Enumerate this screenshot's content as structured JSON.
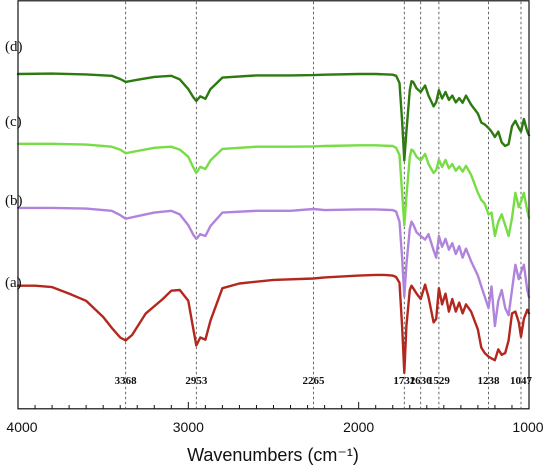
{
  "chart_data": {
    "type": "line",
    "xlabel": "Wavenumbers (cm⁻¹)",
    "ylabel": "",
    "xlim": [
      4000,
      1000
    ],
    "x_reversed": true,
    "x_ticks": [
      4000,
      3000,
      2000,
      1000
    ],
    "y_ticks": "none",
    "grid": false,
    "legend": "none",
    "reference_lines": [
      {
        "x": 3368,
        "label": "3368"
      },
      {
        "x": 2953,
        "label": "2953"
      },
      {
        "x": 2265,
        "label": "2265"
      },
      {
        "x": 1732,
        "label": "1732"
      },
      {
        "x": 1636,
        "label": "1636"
      },
      {
        "x": 1529,
        "label": "1529"
      },
      {
        "x": 1238,
        "label": "1238"
      },
      {
        "x": 1047,
        "label": "1047"
      }
    ],
    "series": [
      {
        "name": "(d)",
        "color": "#2d7a10",
        "x": [
          4000,
          3800,
          3600,
          3450,
          3400,
          3368,
          3300,
          3200,
          3100,
          3050,
          3000,
          2970,
          2953,
          2930,
          2900,
          2870,
          2800,
          2600,
          2400,
          2265,
          2200,
          2000,
          1900,
          1800,
          1780,
          1760,
          1745,
          1732,
          1720,
          1700,
          1690,
          1680,
          1660,
          1636,
          1610,
          1590,
          1560,
          1545,
          1529,
          1510,
          1490,
          1470,
          1450,
          1430,
          1410,
          1390,
          1370,
          1340,
          1300,
          1280,
          1260,
          1238,
          1220,
          1200,
          1180,
          1160,
          1140,
          1120,
          1100,
          1080,
          1060,
          1047,
          1030,
          1010,
          1000
        ],
        "y": [
          0.85,
          0.851,
          0.849,
          0.845,
          0.836,
          0.828,
          0.834,
          0.842,
          0.845,
          0.835,
          0.808,
          0.785,
          0.775,
          0.788,
          0.781,
          0.808,
          0.84,
          0.846,
          0.846,
          0.847,
          0.848,
          0.85,
          0.85,
          0.848,
          0.845,
          0.825,
          0.72,
          0.61,
          0.69,
          0.805,
          0.83,
          0.828,
          0.81,
          0.8,
          0.818,
          0.79,
          0.76,
          0.772,
          0.805,
          0.782,
          0.8,
          0.778,
          0.79,
          0.771,
          0.783,
          0.77,
          0.79,
          0.765,
          0.74,
          0.715,
          0.71,
          0.7,
          0.69,
          0.675,
          0.69,
          0.66,
          0.65,
          0.655,
          0.705,
          0.72,
          0.7,
          0.69,
          0.725,
          0.69,
          0.68
        ]
      },
      {
        "name": "(c)",
        "color": "#77dd44",
        "x": [
          4000,
          3800,
          3600,
          3450,
          3400,
          3368,
          3300,
          3200,
          3100,
          3050,
          3000,
          2970,
          2953,
          2930,
          2900,
          2870,
          2800,
          2600,
          2400,
          2265,
          2200,
          2000,
          1900,
          1800,
          1780,
          1760,
          1745,
          1732,
          1720,
          1700,
          1690,
          1680,
          1660,
          1636,
          1610,
          1590,
          1560,
          1545,
          1529,
          1510,
          1490,
          1470,
          1450,
          1430,
          1410,
          1390,
          1370,
          1340,
          1300,
          1280,
          1260,
          1238,
          1220,
          1200,
          1180,
          1160,
          1140,
          1120,
          1100,
          1080,
          1060,
          1047,
          1030,
          1010,
          1000
        ],
        "y": [
          0.656,
          0.656,
          0.654,
          0.648,
          0.64,
          0.63,
          0.636,
          0.645,
          0.648,
          0.64,
          0.62,
          0.59,
          0.575,
          0.592,
          0.586,
          0.61,
          0.642,
          0.648,
          0.648,
          0.649,
          0.65,
          0.652,
          0.652,
          0.65,
          0.645,
          0.625,
          0.52,
          0.43,
          0.51,
          0.62,
          0.64,
          0.637,
          0.62,
          0.61,
          0.628,
          0.6,
          0.575,
          0.583,
          0.612,
          0.592,
          0.611,
          0.588,
          0.6,
          0.581,
          0.593,
          0.579,
          0.595,
          0.57,
          0.52,
          0.5,
          0.49,
          0.46,
          0.465,
          0.4,
          0.44,
          0.46,
          0.43,
          0.4,
          0.45,
          0.52,
          0.48,
          0.495,
          0.52,
          0.47,
          0.45
        ]
      },
      {
        "name": "(b)",
        "color": "#b084dc",
        "x": [
          4000,
          3800,
          3600,
          3450,
          3400,
          3368,
          3300,
          3200,
          3100,
          3050,
          3000,
          2970,
          2953,
          2930,
          2900,
          2870,
          2800,
          2600,
          2400,
          2265,
          2200,
          2000,
          1900,
          1800,
          1780,
          1760,
          1745,
          1732,
          1720,
          1700,
          1690,
          1680,
          1660,
          1636,
          1610,
          1590,
          1560,
          1545,
          1529,
          1510,
          1490,
          1470,
          1450,
          1430,
          1410,
          1390,
          1370,
          1340,
          1300,
          1280,
          1260,
          1238,
          1220,
          1200,
          1180,
          1160,
          1140,
          1120,
          1100,
          1080,
          1060,
          1047,
          1030,
          1010,
          1000
        ],
        "y": [
          0.478,
          0.478,
          0.476,
          0.47,
          0.458,
          0.448,
          0.455,
          0.465,
          0.47,
          0.46,
          0.43,
          0.403,
          0.392,
          0.405,
          0.4,
          0.428,
          0.465,
          0.47,
          0.47,
          0.475,
          0.472,
          0.474,
          0.474,
          0.472,
          0.468,
          0.44,
          0.34,
          0.232,
          0.32,
          0.42,
          0.44,
          0.432,
          0.41,
          0.4,
          0.39,
          0.405,
          0.36,
          0.34,
          0.4,
          0.37,
          0.392,
          0.362,
          0.38,
          0.35,
          0.372,
          0.34,
          0.365,
          0.33,
          0.29,
          0.26,
          0.232,
          0.2,
          0.26,
          0.15,
          0.22,
          0.25,
          0.2,
          0.18,
          0.25,
          0.32,
          0.28,
          0.3,
          0.32,
          0.25,
          0.23
        ]
      },
      {
        "name": "(a)",
        "color": "#b3281e",
        "x": [
          4000,
          3900,
          3800,
          3700,
          3600,
          3500,
          3450,
          3400,
          3368,
          3330,
          3250,
          3150,
          3100,
          3050,
          3000,
          2970,
          2953,
          2930,
          2900,
          2870,
          2800,
          2700,
          2500,
          2265,
          2200,
          2000,
          1900,
          1850,
          1800,
          1780,
          1760,
          1745,
          1732,
          1720,
          1700,
          1690,
          1680,
          1660,
          1636,
          1610,
          1590,
          1560,
          1545,
          1529,
          1510,
          1490,
          1470,
          1450,
          1430,
          1410,
          1390,
          1370,
          1340,
          1300,
          1280,
          1260,
          1238,
          1220,
          1200,
          1180,
          1160,
          1140,
          1120,
          1100,
          1080,
          1060,
          1047,
          1030,
          1010,
          1000
        ],
        "y": [
          0.262,
          0.262,
          0.258,
          0.24,
          0.22,
          0.175,
          0.145,
          0.118,
          0.11,
          0.125,
          0.185,
          0.225,
          0.248,
          0.25,
          0.22,
          0.14,
          0.096,
          0.118,
          0.112,
          0.165,
          0.255,
          0.268,
          0.278,
          0.282,
          0.285,
          0.29,
          0.292,
          0.292,
          0.29,
          0.286,
          0.27,
          0.15,
          0.02,
          0.15,
          0.25,
          0.262,
          0.255,
          0.24,
          0.225,
          0.265,
          0.23,
          0.16,
          0.17,
          0.255,
          0.21,
          0.24,
          0.19,
          0.225,
          0.19,
          0.215,
          0.185,
          0.21,
          0.19,
          0.14,
          0.09,
          0.075,
          0.065,
          0.06,
          0.055,
          0.085,
          0.07,
          0.075,
          0.11,
          0.185,
          0.19,
          0.16,
          0.12,
          0.17,
          0.195,
          0.185
        ]
      }
    ]
  }
}
